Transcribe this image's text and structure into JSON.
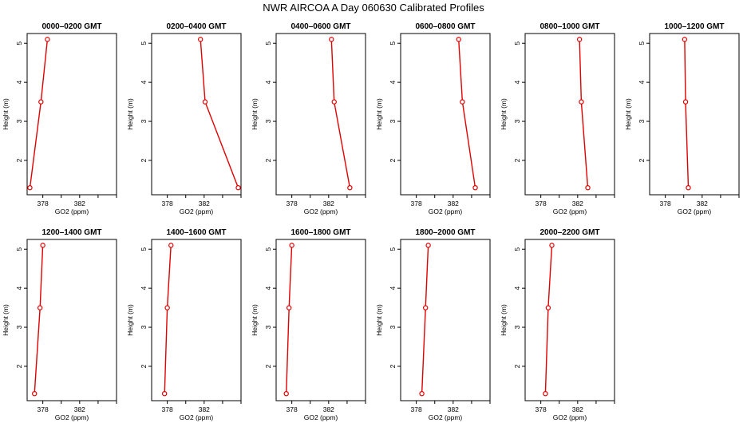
{
  "figure": {
    "title": "NWR AIRCOA A  Day 060630  Calibrated Profiles",
    "series_color": "#e00000"
  },
  "chart_data": [
    {
      "type": "line",
      "title": "0000–0200 GMT",
      "xlabel": "GO2 (ppm)",
      "ylabel": "Height (m)",
      "xlim": [
        376.3,
        386.0
      ],
      "ylim": [
        1.12,
        5.25
      ],
      "xticks": [
        378,
        382
      ],
      "yticks": [
        2,
        3,
        4,
        5
      ],
      "x": [
        376.6,
        377.8,
        378.5
      ],
      "y": [
        1.3,
        3.5,
        5.1
      ]
    },
    {
      "type": "line",
      "title": "0200–0400 GMT",
      "xlabel": "GO2 (ppm)",
      "ylabel": "Height (m)",
      "xlim": [
        376.3,
        386.0
      ],
      "ylim": [
        1.12,
        5.25
      ],
      "xticks": [
        378,
        382
      ],
      "yticks": [
        2,
        3,
        4,
        5
      ],
      "x": [
        385.7,
        382.1,
        381.6
      ],
      "y": [
        1.3,
        3.5,
        5.1
      ]
    },
    {
      "type": "line",
      "title": "0400–0600 GMT",
      "xlabel": "GO2 (ppm)",
      "ylabel": "Height (m)",
      "xlim": [
        376.3,
        386.0
      ],
      "ylim": [
        1.12,
        5.25
      ],
      "xticks": [
        378,
        382
      ],
      "yticks": [
        2,
        3,
        4,
        5
      ],
      "x": [
        384.3,
        382.6,
        382.3
      ],
      "y": [
        1.3,
        3.5,
        5.1
      ]
    },
    {
      "type": "line",
      "title": "0600–0800 GMT",
      "xlabel": "GO2 (ppm)",
      "ylabel": "Height (m)",
      "xlim": [
        376.3,
        386.0
      ],
      "ylim": [
        1.12,
        5.25
      ],
      "xticks": [
        378,
        382
      ],
      "yticks": [
        2,
        3,
        4,
        5
      ],
      "x": [
        384.4,
        383.0,
        382.6
      ],
      "y": [
        1.3,
        3.5,
        5.1
      ]
    },
    {
      "type": "line",
      "title": "0800–1000 GMT",
      "xlabel": "GO2 (ppm)",
      "ylabel": "Height (m)",
      "xlim": [
        376.3,
        386.0
      ],
      "ylim": [
        1.12,
        5.25
      ],
      "xticks": [
        378,
        382
      ],
      "yticks": [
        2,
        3,
        4,
        5
      ],
      "x": [
        383.1,
        382.4,
        382.2
      ],
      "y": [
        1.3,
        3.5,
        5.1
      ]
    },
    {
      "type": "line",
      "title": "1000–1200 GMT",
      "xlabel": "GO2 (ppm)",
      "ylabel": "Height (m)",
      "xlim": [
        376.3,
        386.0
      ],
      "ylim": [
        1.12,
        5.25
      ],
      "xticks": [
        378,
        382
      ],
      "yticks": [
        2,
        3,
        4,
        5
      ],
      "x": [
        380.5,
        380.2,
        380.1
      ],
      "y": [
        1.3,
        3.5,
        5.1
      ]
    },
    {
      "type": "line",
      "title": "1200–1400 GMT",
      "xlabel": "GO2 (ppm)",
      "ylabel": "Height (m)",
      "xlim": [
        376.3,
        386.0
      ],
      "ylim": [
        1.12,
        5.25
      ],
      "xticks": [
        378,
        382
      ],
      "yticks": [
        2,
        3,
        4,
        5
      ],
      "x": [
        377.1,
        377.7,
        378.0
      ],
      "y": [
        1.3,
        3.5,
        5.1
      ]
    },
    {
      "type": "line",
      "title": "1400–1600 GMT",
      "xlabel": "GO2 (ppm)",
      "ylabel": "Height (m)",
      "xlim": [
        376.3,
        386.0
      ],
      "ylim": [
        1.12,
        5.25
      ],
      "xticks": [
        378,
        382
      ],
      "yticks": [
        2,
        3,
        4,
        5
      ],
      "x": [
        377.7,
        378.0,
        378.4
      ],
      "y": [
        1.3,
        3.5,
        5.1
      ]
    },
    {
      "type": "line",
      "title": "1600–1800 GMT",
      "xlabel": "GO2 (ppm)",
      "ylabel": "Height (m)",
      "xlim": [
        376.3,
        386.0
      ],
      "ylim": [
        1.12,
        5.25
      ],
      "xticks": [
        378,
        382
      ],
      "yticks": [
        2,
        3,
        4,
        5
      ],
      "x": [
        377.4,
        377.7,
        378.0
      ],
      "y": [
        1.3,
        3.5,
        5.1
      ]
    },
    {
      "type": "line",
      "title": "1800–2000 GMT",
      "xlabel": "GO2 (ppm)",
      "ylabel": "Height (m)",
      "xlim": [
        376.3,
        386.0
      ],
      "ylim": [
        1.12,
        5.25
      ],
      "xticks": [
        378,
        382
      ],
      "yticks": [
        2,
        3,
        4,
        5
      ],
      "x": [
        378.6,
        379.0,
        379.3
      ],
      "y": [
        1.3,
        3.5,
        5.1
      ]
    },
    {
      "type": "line",
      "title": "2000–2200 GMT",
      "xlabel": "GO2 (ppm)",
      "ylabel": "Height (m)",
      "xlim": [
        376.3,
        386.0
      ],
      "ylim": [
        1.12,
        5.25
      ],
      "xticks": [
        378,
        382
      ],
      "yticks": [
        2,
        3,
        4,
        5
      ],
      "x": [
        378.5,
        378.8,
        379.2
      ],
      "y": [
        1.3,
        3.5,
        5.1
      ]
    }
  ]
}
